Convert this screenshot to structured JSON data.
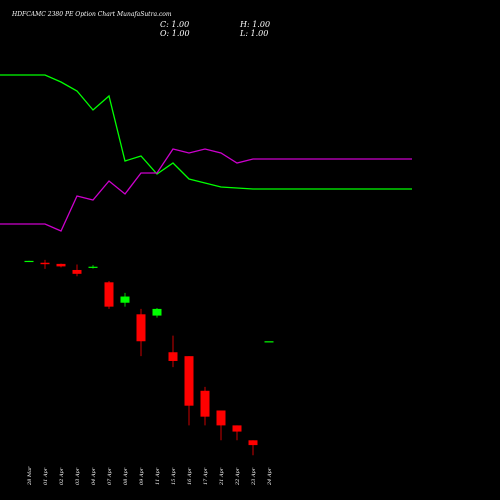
{
  "chart_data": {
    "type": "candlestick",
    "title": "HDFCAMC 2380 PE Option Chart MunafaSutra.com",
    "ohlc_readout": {
      "close": "C: 1.00",
      "open": "O: 1.00",
      "high": "H: 1.00",
      "low": "L: 1.00"
    },
    "colors": {
      "background": "#000000",
      "up": "#00ff00",
      "down": "#ff0000",
      "text": "#ffffff",
      "line_green": "#00ff00",
      "line_magenta": "#cc00cc"
    },
    "x": [
      "28 Mar",
      "01 Apr",
      "02 Apr",
      "03 Apr",
      "04 Apr",
      "07 Apr",
      "08 Apr",
      "09 Apr",
      "11 Apr",
      "15 Apr",
      "16 Apr",
      "17 Apr",
      "21 Apr",
      "22 Apr",
      "23 Apr",
      "24 Apr"
    ],
    "candles": [
      {
        "date": "28 Mar",
        "o": 42.0,
        "h": 42.3,
        "l": 41.8,
        "c": 42.0
      },
      {
        "date": "01 Apr",
        "o": 38.5,
        "h": 44.0,
        "l": 29.0,
        "c": 36.0
      },
      {
        "date": "02 Apr",
        "o": 36.5,
        "h": 37.0,
        "l": 31.0,
        "c": 32.5
      },
      {
        "date": "03 Apr",
        "o": 27.5,
        "h": 35.5,
        "l": 20.5,
        "c": 23.0
      },
      {
        "date": "04 Apr",
        "o": 32.0,
        "h": 34.5,
        "l": 29.5,
        "c": 32.0
      },
      {
        "date": "07 Apr",
        "o": 15.5,
        "h": 16.5,
        "l": 4.5,
        "c": 5.0
      },
      {
        "date": "08 Apr",
        "o": 6.0,
        "h": 9.5,
        "l": 5.0,
        "c": 8.0
      },
      {
        "date": "09 Apr",
        "o": 3.5,
        "h": 4.5,
        "l": 0.5,
        "c": 1.0
      },
      {
        "date": "11 Apr",
        "o": 3.3,
        "h": 4.7,
        "l": 3.0,
        "c": 4.5
      },
      {
        "date": "15 Apr",
        "o": 0.6,
        "h": 1.3,
        "l": 0.3,
        "c": 0.4
      },
      {
        "date": "16 Apr",
        "o": 0.5,
        "h": 0.5,
        "l": 0.02,
        "c": 0.05
      },
      {
        "date": "17 Apr",
        "o": 0.1,
        "h": 0.12,
        "l": 0.02,
        "c": 0.03
      },
      {
        "date": "21 Apr",
        "o": 0.04,
        "h": 0.04,
        "l": 0.01,
        "c": 0.02
      },
      {
        "date": "22 Apr",
        "o": 0.02,
        "h": 0.02,
        "l": 0.01,
        "c": 0.015
      },
      {
        "date": "23 Apr",
        "o": 0.01,
        "h": 0.01,
        "l": 0.005,
        "c": 0.008
      },
      {
        "date": "24 Apr",
        "o": 1.0,
        "h": 1.0,
        "l": 1.0,
        "c": 1.0
      }
    ],
    "lines": [
      {
        "color": "#00ff00",
        "points": [
          {
            "x": "28 Mar",
            "y": 75
          },
          {
            "x": "01 Apr",
            "y": 75
          },
          {
            "x": "02 Apr",
            "y": 82
          },
          {
            "x": "03 Apr",
            "y": 91
          },
          {
            "x": "04 Apr",
            "y": 110
          },
          {
            "x": "07 Apr",
            "y": 96
          },
          {
            "x": "08 Apr",
            "y": 161
          },
          {
            "x": "09 Apr",
            "y": 156
          },
          {
            "x": "11 Apr",
            "y": 174
          },
          {
            "x": "15 Apr",
            "y": 163
          },
          {
            "x": "16 Apr",
            "y": 179
          },
          {
            "x": "17 Apr",
            "y": 183
          },
          {
            "x": "21 Apr",
            "y": 187
          },
          {
            "x": "22 Apr",
            "y": 188
          },
          {
            "x": "23 Apr",
            "y": 189
          }
        ]
      },
      {
        "color": "#cc00cc",
        "points": [
          {
            "x": "28 Mar",
            "y": 224
          },
          {
            "x": "01 Apr",
            "y": 224
          },
          {
            "x": "02 Apr",
            "y": 231
          },
          {
            "x": "03 Apr",
            "y": 196
          },
          {
            "x": "04 Apr",
            "y": 200
          },
          {
            "x": "07 Apr",
            "y": 181
          },
          {
            "x": "08 Apr",
            "y": 194
          },
          {
            "x": "09 Apr",
            "y": 173
          },
          {
            "x": "11 Apr",
            "y": 173
          },
          {
            "x": "15 Apr",
            "y": 149
          },
          {
            "x": "16 Apr",
            "y": 153
          },
          {
            "x": "17 Apr",
            "y": 149
          },
          {
            "x": "21 Apr",
            "y": 153
          },
          {
            "x": "22 Apr",
            "y": 163
          },
          {
            "x": "23 Apr",
            "y": 159
          }
        ]
      }
    ]
  }
}
